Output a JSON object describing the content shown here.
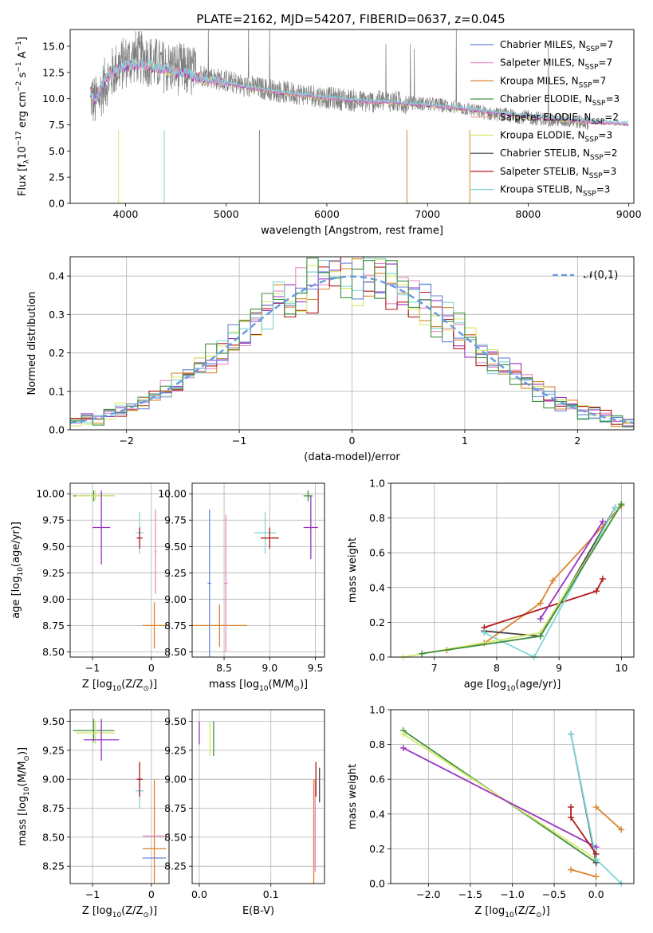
{
  "figure_title": "PLATE=2162, MJD=54207, FIBERID=0637, z=0.045",
  "colors": {
    "chabrier_miles": "#6b83dc",
    "salpeter_miles": "#e78ac3",
    "kroupa_miles": "#d9842a",
    "chabrier_elodie": "#3f8f3f",
    "salpeter_elodie": "#f09aa0",
    "kroupa_elodie": "#d6e86a",
    "chabrier_stelib": "#444444",
    "salpeter_stelib": "#b01818",
    "kroupa_stelib": "#7fd6d6",
    "purple": "#9a32c4",
    "data_gray": "#7f7f7f",
    "normal_curve": "#6a9be0",
    "grid": "#b0b0b0"
  },
  "chart_data": [
    {
      "id": "spectrum",
      "type": "line",
      "title": "PLATE=2162, MJD=54207, FIBERID=0637, z=0.045",
      "xlabel": "wavelength [Angstrom, rest frame]",
      "ylabel": "Flux [f_λ10^-17 erg cm^-2 s^-1 A^-1]",
      "xlim": [
        3450,
        9050
      ],
      "ylim": [
        0,
        16.6
      ],
      "xticks": [
        "4000",
        "5000",
        "6000",
        "7000",
        "8000",
        "9000"
      ],
      "yticks": [
        "0.0",
        "2.5",
        "5.0",
        "7.5",
        "10.0",
        "12.5",
        "15.0"
      ],
      "grid": false,
      "legend_position": "top-right",
      "legend": [
        {
          "label": "Chabrier MILES, N",
          "sub": "SSP",
          "value": "=7",
          "color": "#6b83dc"
        },
        {
          "label": "Salpeter MILES, N",
          "sub": "SSP",
          "value": "=7",
          "color": "#e78ac3"
        },
        {
          "label": "Kroupa MILES, N",
          "sub": "SSP",
          "value": "=7",
          "color": "#d9842a"
        },
        {
          "label": "Chabrier ELODIE, N",
          "sub": "SSP",
          "value": "=3",
          "color": "#3f8f3f"
        },
        {
          "label": "Salpeter ELODIE, N",
          "sub": "SSP",
          "value": "=2",
          "color": "#f09aa0"
        },
        {
          "label": "Kroupa ELODIE, N",
          "sub": "SSP",
          "value": "=3",
          "color": "#d6e86a"
        },
        {
          "label": "Chabrier STELIB, N",
          "sub": "SSP",
          "value": "=2",
          "color": "#444444"
        },
        {
          "label": "Salpeter STELIB, N",
          "sub": "SSP",
          "value": "=3",
          "color": "#b01818"
        },
        {
          "label": "Kroupa STELIB, N",
          "sub": "SSP",
          "value": "=3",
          "color": "#7fd6d6"
        }
      ],
      "data_curve_x": [
        3650,
        3700,
        3800,
        3900,
        4000,
        4100,
        4200,
        4300,
        4400,
        4500,
        4600,
        4700,
        4800,
        4900,
        5000,
        5200,
        5400,
        5600,
        5800,
        6000,
        6200,
        6400,
        6600,
        6800,
        7000,
        7200,
        7400,
        7600,
        7800,
        8000,
        8200,
        8400,
        8600,
        8800,
        9000
      ],
      "data_curve_y": [
        10.3,
        9.6,
        11.5,
        12.8,
        13.5,
        14.0,
        13.8,
        13.3,
        13.0,
        12.9,
        12.7,
        12.4,
        12.2,
        11.9,
        11.7,
        11.2,
        10.9,
        10.6,
        10.4,
        10.1,
        9.9,
        9.7,
        9.8,
        9.6,
        9.5,
        9.3,
        9.0,
        8.6,
        8.4,
        8.2,
        8.0,
        7.9,
        7.7,
        7.6,
        7.5
      ],
      "model_curve_y": [
        10.5,
        9.8,
        11.8,
        12.5,
        13.0,
        13.2,
        13.1,
        12.9,
        12.7,
        12.5,
        12.3,
        12.0,
        11.8,
        11.6,
        11.4,
        11.0,
        10.7,
        10.4,
        10.2,
        10.0,
        9.8,
        9.6,
        9.6,
        9.4,
        9.3,
        9.1,
        8.9,
        8.6,
        8.4,
        8.2,
        8.0,
        7.9,
        7.7,
        7.6,
        7.5
      ]
    },
    {
      "id": "residuals",
      "type": "bar",
      "xlabel": "(data-model)/error",
      "ylabel": "Normed distribution",
      "xlim": [
        -2.5,
        2.5
      ],
      "ylim": [
        0,
        0.45
      ],
      "xticks": [
        "−2",
        "−1",
        "0",
        "1",
        "2"
      ],
      "yticks": [
        "0.0",
        "0.1",
        "0.2",
        "0.3",
        "0.4"
      ],
      "grid": true,
      "legend_position": "top-right",
      "legend": [
        {
          "label": "𝒩(0,1)",
          "color": "#6a9be0"
        }
      ],
      "bin_edges_start": -2.5,
      "bin_width": 0.1
    },
    {
      "id": "age_vs_Z",
      "type": "scatter",
      "xlabel": "Z [log10(Z/Z⊙)]",
      "ylabel": "age  [log10(age/yr)]",
      "xlim": [
        -1.38,
        0.3
      ],
      "ylim": [
        8.45,
        10.1
      ],
      "xticks": [
        "−1",
        "0"
      ],
      "yticks": [
        "8.50",
        "8.75",
        "9.00",
        "9.25",
        "9.50",
        "9.75",
        "10.00"
      ],
      "grid": true,
      "points": [
        {
          "x": 0.05,
          "y": 8.75,
          "xerr": 0.2,
          "yerr": 0.22,
          "color": "#d9842a"
        },
        {
          "x": 0.07,
          "y": 9.45,
          "xerr": 0.02,
          "yerr": 0.4,
          "color": "#e78ac3"
        },
        {
          "x": -0.2,
          "y": 9.63,
          "xerr": 0.07,
          "yerr": 0.2,
          "color": "#7fd6d6"
        },
        {
          "x": -0.2,
          "y": 9.58,
          "xerr": 0.05,
          "yerr": 0.1,
          "color": "#b01818"
        },
        {
          "x": -0.98,
          "y": 9.98,
          "xerr": 0.35,
          "yerr": 0.05,
          "color": "#3f8f3f"
        },
        {
          "x": -0.95,
          "y": 9.98,
          "xerr": 0.33,
          "yerr": 0.05,
          "color": "#d6e86a"
        },
        {
          "x": -0.85,
          "y": 9.68,
          "xerr": 0.15,
          "yerr": 0.35,
          "color": "#9a32c4"
        }
      ]
    },
    {
      "id": "age_vs_mass",
      "type": "scatter",
      "xlabel": "mass [log10(M/M⊙)]",
      "xlim": [
        8.15,
        9.6
      ],
      "ylim": [
        8.45,
        10.1
      ],
      "xticks": [
        "8.5",
        "9.0",
        "9.5"
      ],
      "yticks": [
        "8.50",
        "8.75",
        "9.00",
        "9.25",
        "9.50",
        "9.75",
        "10.00"
      ],
      "grid": true,
      "points": [
        {
          "x": 8.45,
          "y": 8.75,
          "xerr": 0.3,
          "yerr": 0.2,
          "color": "#d9842a"
        },
        {
          "x": 8.34,
          "y": 9.15,
          "xerr": 0.02,
          "yerr": 0.7,
          "color": "#6b83dc"
        },
        {
          "x": 8.52,
          "y": 9.15,
          "xerr": 0.02,
          "yerr": 0.65,
          "color": "#e78ac3"
        },
        {
          "x": 8.95,
          "y": 9.63,
          "xerr": 0.12,
          "yerr": 0.2,
          "color": "#7fd6d6"
        },
        {
          "x": 9.0,
          "y": 9.58,
          "xerr": 0.1,
          "yerr": 0.1,
          "color": "#b01818"
        },
        {
          "x": 9.42,
          "y": 9.98,
          "xerr": 0.05,
          "yerr": 0.05,
          "color": "#3f8f3f"
        },
        {
          "x": 9.45,
          "y": 9.68,
          "xerr": 0.08,
          "yerr": 0.3,
          "color": "#9a32c4"
        }
      ]
    },
    {
      "id": "weight_vs_age",
      "type": "line",
      "xlabel": "age  [log10(age/yr)]",
      "ylabel": "mass weight",
      "xlim": [
        6.3,
        10.2
      ],
      "ylim": [
        0,
        1.0
      ],
      "xticks": [
        "7",
        "8",
        "9",
        "10"
      ],
      "yticks": [
        "0.0",
        "0.2",
        "0.4",
        "0.6",
        "0.8",
        "1.0"
      ],
      "grid": true,
      "series": [
        {
          "color": "#d9842a",
          "x": [
            7.2,
            7.8,
            8.7,
            8.9,
            10.0
          ],
          "y": [
            0.04,
            0.08,
            0.31,
            0.44,
            0.87
          ]
        },
        {
          "color": "#444444",
          "x": [
            7.8,
            8.7,
            9.9
          ],
          "y": [
            0.15,
            0.12,
            0.86
          ]
        },
        {
          "color": "#b01818",
          "x": [
            7.8,
            9.6,
            9.7
          ],
          "y": [
            0.17,
            0.38,
            0.45
          ]
        },
        {
          "color": "#9a32c4",
          "x": [
            8.7,
            9.7
          ],
          "y": [
            0.22,
            0.78
          ]
        },
        {
          "color": "#7fd6d6",
          "x": [
            7.8,
            8.6,
            9.9
          ],
          "y": [
            0.14,
            0.0,
            0.86
          ]
        },
        {
          "color": "#d6e86a",
          "x": [
            6.5,
            8.7,
            10.0
          ],
          "y": [
            0.0,
            0.14,
            0.88
          ]
        },
        {
          "color": "#3f8f3f",
          "x": [
            6.8,
            8.7,
            10.0
          ],
          "y": [
            0.02,
            0.12,
            0.88
          ]
        }
      ]
    },
    {
      "id": "mass_vs_Z",
      "type": "scatter",
      "xlabel": "Z [log10(Z/Z⊙)]",
      "ylabel": "mass [log10(M/M⊙)]",
      "xlim": [
        -1.38,
        0.3
      ],
      "ylim": [
        8.1,
        9.6
      ],
      "xticks": [
        "−1",
        "0"
      ],
      "yticks": [
        "8.25",
        "8.50",
        "8.75",
        "9.00",
        "9.25",
        "9.50"
      ],
      "grid": true,
      "points": [
        {
          "x": 0.05,
          "y": 8.4,
          "xerr": 0.2,
          "yerr": 0.6,
          "color": "#d9842a"
        },
        {
          "x": 0.05,
          "y": 8.32,
          "xerr": 0.2,
          "yerr": 0.0,
          "color": "#6b83dc"
        },
        {
          "x": 0.05,
          "y": 8.51,
          "xerr": 0.2,
          "yerr": 0.0,
          "color": "#e78ac3"
        },
        {
          "x": -0.2,
          "y": 8.9,
          "xerr": 0.07,
          "yerr": 0.15,
          "color": "#7fd6d6"
        },
        {
          "x": -0.2,
          "y": 9.0,
          "xerr": 0.05,
          "yerr": 0.15,
          "color": "#b01818"
        },
        {
          "x": -0.98,
          "y": 9.42,
          "xerr": 0.35,
          "yerr": 0.1,
          "color": "#3f8f3f"
        },
        {
          "x": -0.95,
          "y": 9.4,
          "xerr": 0.33,
          "yerr": 0.1,
          "color": "#d6e86a"
        },
        {
          "x": -0.85,
          "y": 9.34,
          "xerr": 0.3,
          "yerr": 0.18,
          "color": "#9a32c4"
        }
      ]
    },
    {
      "id": "mass_vs_ebv",
      "type": "scatter",
      "xlabel": "E(B-V)",
      "xlim": [
        -0.01,
        0.175
      ],
      "ylim": [
        8.1,
        9.6
      ],
      "xticks": [
        "0.0",
        "0.1"
      ],
      "yticks": [
        "8.25",
        "8.50",
        "8.75",
        "9.00",
        "9.25",
        "9.50"
      ],
      "grid": true,
      "points": [
        {
          "x": 0.0,
          "y": 9.4,
          "xerr": 0.0,
          "yerr": 0.1,
          "color": "#9a32c4"
        },
        {
          "x": 0.015,
          "y": 9.35,
          "xerr": 0.0,
          "yerr": 0.15,
          "color": "#d6e86a"
        },
        {
          "x": 0.02,
          "y": 9.35,
          "xerr": 0.0,
          "yerr": 0.15,
          "color": "#3f8f3f"
        },
        {
          "x": 0.16,
          "y": 8.55,
          "xerr": 0.0,
          "yerr": 0.45,
          "color": "#d9842a"
        },
        {
          "x": 0.162,
          "y": 8.6,
          "xerr": 0.0,
          "yerr": 0.4,
          "color": "#e78ac3"
        },
        {
          "x": 0.163,
          "y": 9.0,
          "xerr": 0.0,
          "yerr": 0.15,
          "color": "#b01818"
        },
        {
          "x": 0.168,
          "y": 8.95,
          "xerr": 0.0,
          "yerr": 0.15,
          "color": "#444444"
        }
      ]
    },
    {
      "id": "weight_vs_Z",
      "type": "line",
      "xlabel": "Z [log10(Z/Z⊙)]",
      "ylabel": "mass weight",
      "xlim": [
        -2.45,
        0.45
      ],
      "ylim": [
        0,
        1.0
      ],
      "xticks": [
        "−2.0",
        "−1.5",
        "−1.0",
        "−0.5",
        "0.0"
      ],
      "yticks": [
        "0.0",
        "0.2",
        "0.4",
        "0.6",
        "0.8",
        "1.0"
      ],
      "grid": true,
      "series": [
        {
          "color": "#3f8f3f",
          "x": [
            -2.3,
            0.0
          ],
          "y": [
            0.88,
            0.12
          ]
        },
        {
          "color": "#d6e86a",
          "x": [
            -2.3,
            0.0
          ],
          "y": [
            0.86,
            0.14
          ]
        },
        {
          "color": "#9a32c4",
          "x": [
            -2.3,
            0.0
          ],
          "y": [
            0.78,
            0.21
          ]
        },
        {
          "color": "#444444",
          "x": [
            -0.3,
            0.0
          ],
          "y": [
            0.86,
            0.12
          ]
        },
        {
          "color": "#7fd6d6",
          "x": [
            -0.3,
            0.0,
            0.3
          ],
          "y": [
            0.86,
            0.14,
            0.0
          ]
        },
        {
          "color": "#d9842a",
          "x": [
            0.0,
            0.3
          ],
          "y": [
            0.44,
            0.31
          ]
        },
        {
          "color": "#b01818",
          "x": [
            -0.3,
            -0.3,
            0.0
          ],
          "y": [
            0.44,
            0.38,
            0.17
          ]
        },
        {
          "color": "#d9842a",
          "x": [
            -0.3,
            0.0
          ],
          "y": [
            0.08,
            0.04
          ]
        }
      ]
    }
  ]
}
